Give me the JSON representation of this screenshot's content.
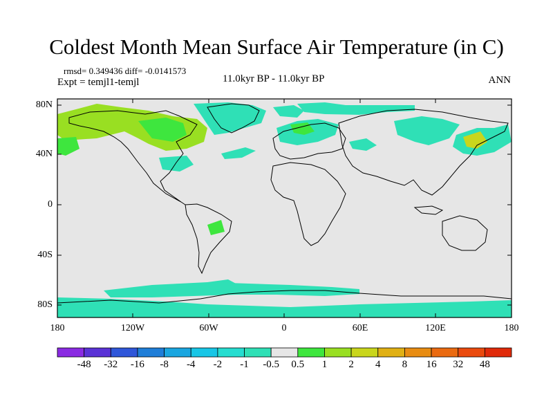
{
  "title": "Coldest Month Mean Surface Air Temperature (in C)",
  "stats": "rmsd= 0.349436 diff= -0.0141573",
  "expt": "Expt = temjl1-temjl",
  "center_label": "11.0kyr BP - 11.0kyr BP",
  "season": "ANN",
  "map": {
    "y_ticks": [
      "80N",
      "40N",
      "0",
      "40S",
      "80S"
    ],
    "x_ticks": [
      "180",
      "120W",
      "60W",
      "0",
      "60E",
      "120E",
      "180"
    ],
    "background_color": "#e6e6e6"
  },
  "colorbar": {
    "labels": [
      "-48",
      "-32",
      "-16",
      "-8",
      "-4",
      "-2",
      "-1",
      "-0.5",
      "0.5",
      "1",
      "2",
      "4",
      "8",
      "16",
      "32",
      "48"
    ],
    "colors": [
      "#8a2be2",
      "#5a32d6",
      "#2f56d9",
      "#1f7ed8",
      "#1aa6e0",
      "#18c6e6",
      "#26ddd0",
      "#2fe0b6",
      "#e6e6e6",
      "#3ee63e",
      "#99df22",
      "#c9d61c",
      "#e0b014",
      "#e88c12",
      "#ea6a10",
      "#ea4a0e",
      "#e02a0a"
    ]
  }
}
